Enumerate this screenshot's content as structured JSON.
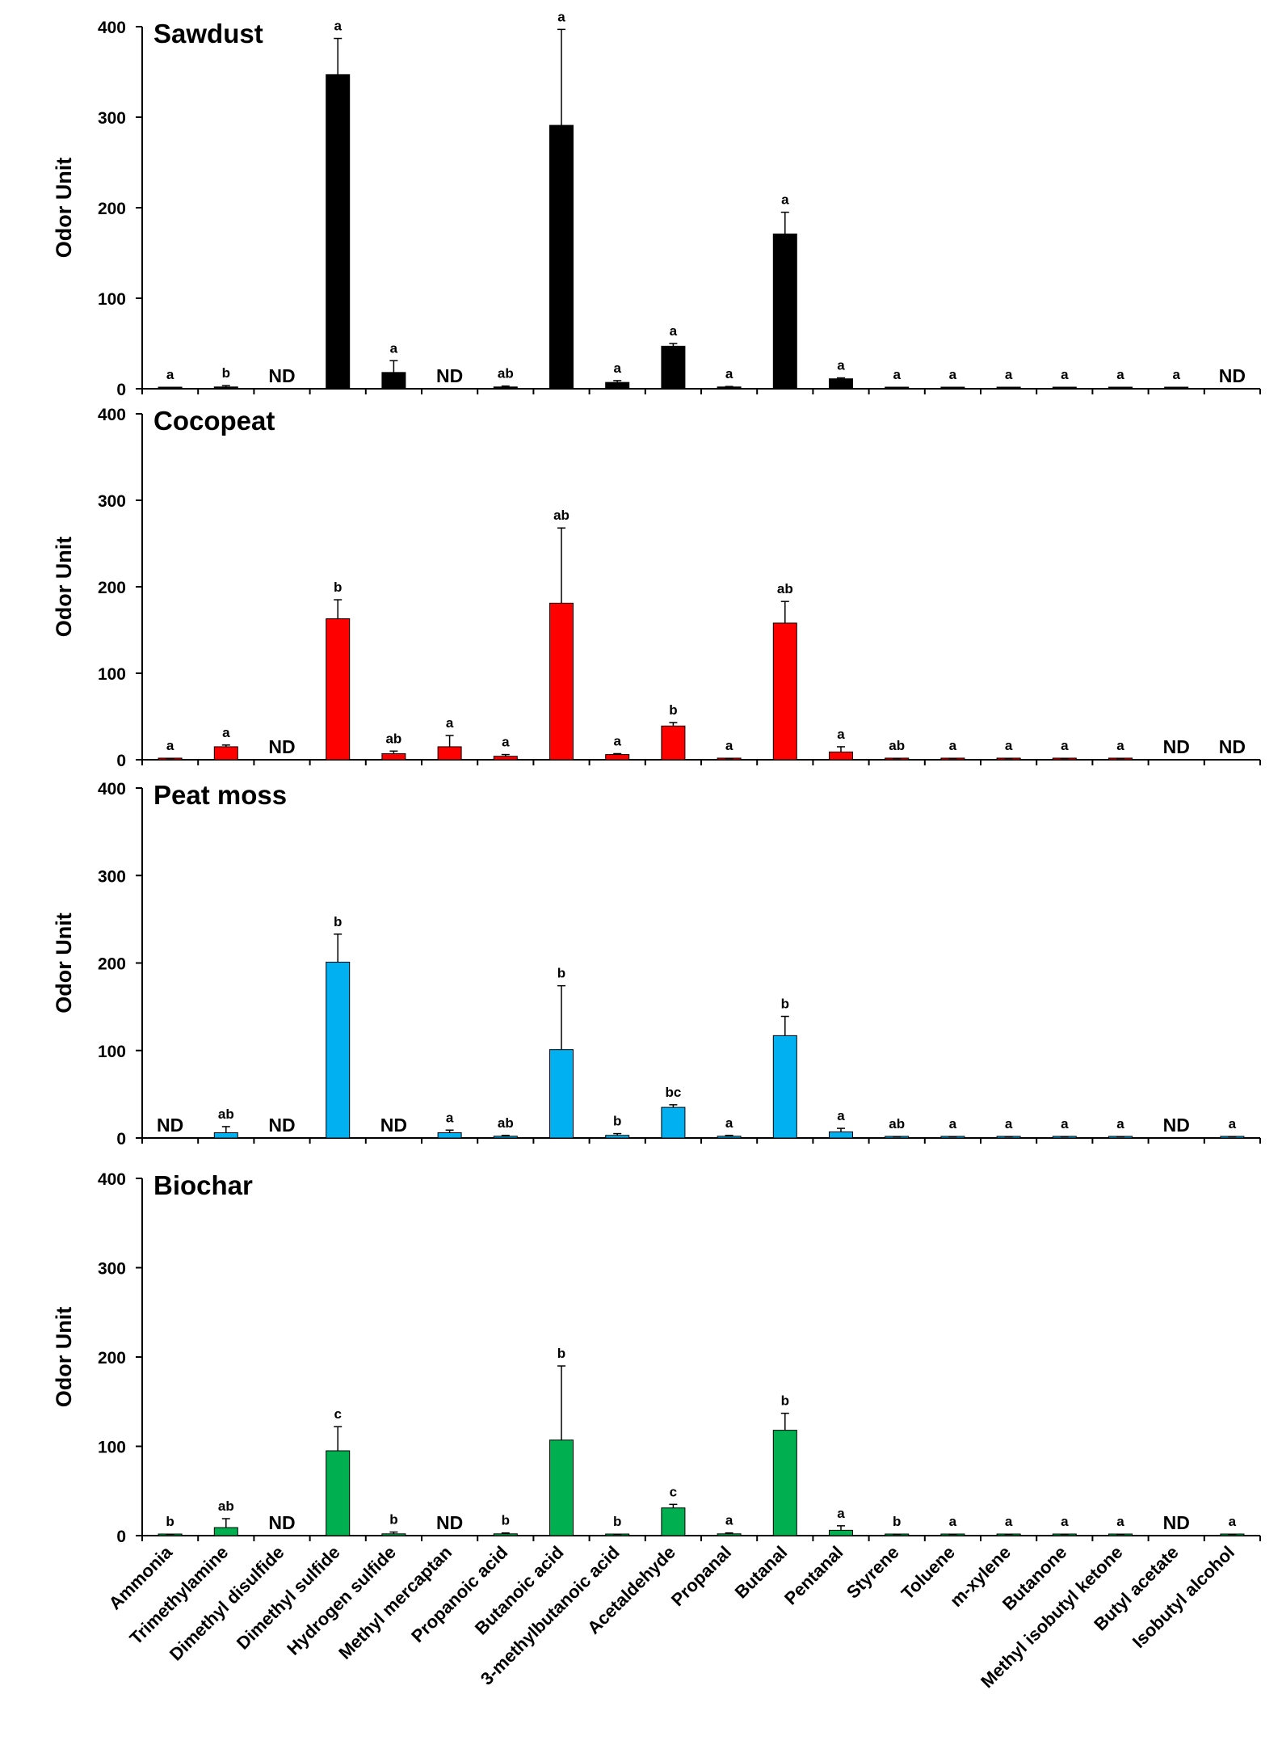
{
  "chart_data": {
    "type": "bar",
    "ylabel": "Odor Unit",
    "ylim": [
      0,
      400
    ],
    "yticks": [
      0,
      100,
      200,
      300,
      400
    ],
    "categories": [
      "Ammonia",
      "Trimethylamine",
      "Dimethyl disulfide",
      "Dimethyl sulfide",
      "Hydrogen sulfide",
      "Methyl mercaptan",
      "Propanoic acid",
      "Butanoic acid",
      "3-methylbutanoic acid",
      "Acetaldehyde",
      "Propanal",
      "Butanal",
      "Pentanal",
      "Styrene",
      "Toluene",
      "m-xylene",
      "Butanone",
      "Methyl isobutyl ketone",
      "Butyl acetate",
      "Isobutyl alcohol"
    ],
    "nd_text": "ND",
    "panels": [
      {
        "title": "Sawdust",
        "color": "#000000",
        "values": [
          1,
          2,
          null,
          347,
          18,
          null,
          2,
          291,
          7,
          47,
          2,
          171,
          11,
          1,
          1,
          1,
          1,
          1,
          1,
          null
        ],
        "errors": [
          0.5,
          1.5,
          null,
          40,
          13,
          null,
          1,
          106,
          2,
          3,
          0.5,
          24,
          1,
          0.5,
          0.5,
          0.5,
          0.5,
          0.5,
          0.5,
          null
        ],
        "letters": [
          "a",
          "b",
          "ND",
          "a",
          "a",
          "ND",
          "ab",
          "a",
          "a",
          "a",
          "a",
          "a",
          "a",
          "a",
          "a",
          "a",
          "a",
          "a",
          "a",
          "ND"
        ]
      },
      {
        "title": "Cocopeat",
        "color": "#ff0000",
        "values": [
          1,
          15,
          null,
          163,
          7,
          15,
          4,
          181,
          6,
          39,
          1,
          158,
          9,
          1,
          1,
          1,
          1,
          1,
          null,
          null
        ],
        "errors": [
          0.5,
          2,
          null,
          22,
          3,
          13,
          2,
          87,
          1,
          4,
          0.5,
          25,
          6,
          0.5,
          0.5,
          0.5,
          0.5,
          0.5,
          null,
          null
        ],
        "letters": [
          "a",
          "a",
          "ND",
          "b",
          "ab",
          "a",
          "a",
          "ab",
          "a",
          "b",
          "a",
          "ab",
          "a",
          "ab",
          "a",
          "a",
          "a",
          "a",
          "ND",
          "ND"
        ]
      },
      {
        "title": "Peat moss",
        "color": "#00b0f0",
        "values": [
          null,
          6,
          null,
          201,
          null,
          6,
          2,
          101,
          3,
          35,
          2,
          117,
          7,
          1,
          1,
          1,
          1,
          1,
          null,
          1
        ],
        "errors": [
          null,
          7,
          null,
          32,
          null,
          3,
          1,
          73,
          2,
          3,
          1,
          22,
          4,
          0.5,
          0.5,
          0.5,
          0.5,
          0.5,
          null,
          0.5
        ],
        "letters": [
          "ND",
          "ab",
          "ND",
          "b",
          "ND",
          "a",
          "ab",
          "b",
          "b",
          "bc",
          "a",
          "b",
          "a",
          "ab",
          "a",
          "a",
          "a",
          "a",
          "ND",
          "a"
        ]
      },
      {
        "title": "Biochar",
        "color": "#00b050",
        "values": [
          1,
          9,
          null,
          95,
          2,
          null,
          2,
          107,
          1,
          31,
          2,
          118,
          6,
          1,
          1,
          1,
          1,
          1,
          null,
          1
        ],
        "errors": [
          0.5,
          10,
          null,
          27,
          2,
          null,
          1,
          83,
          0.5,
          4,
          1,
          19,
          5,
          0.5,
          0.5,
          0.5,
          0.5,
          0.5,
          null,
          0.5
        ],
        "letters": [
          "b",
          "ab",
          "ND",
          "c",
          "b",
          "ND",
          "b",
          "b",
          "b",
          "c",
          "a",
          "b",
          "a",
          "b",
          "a",
          "a",
          "a",
          "a",
          "ND",
          "a"
        ]
      }
    ]
  }
}
